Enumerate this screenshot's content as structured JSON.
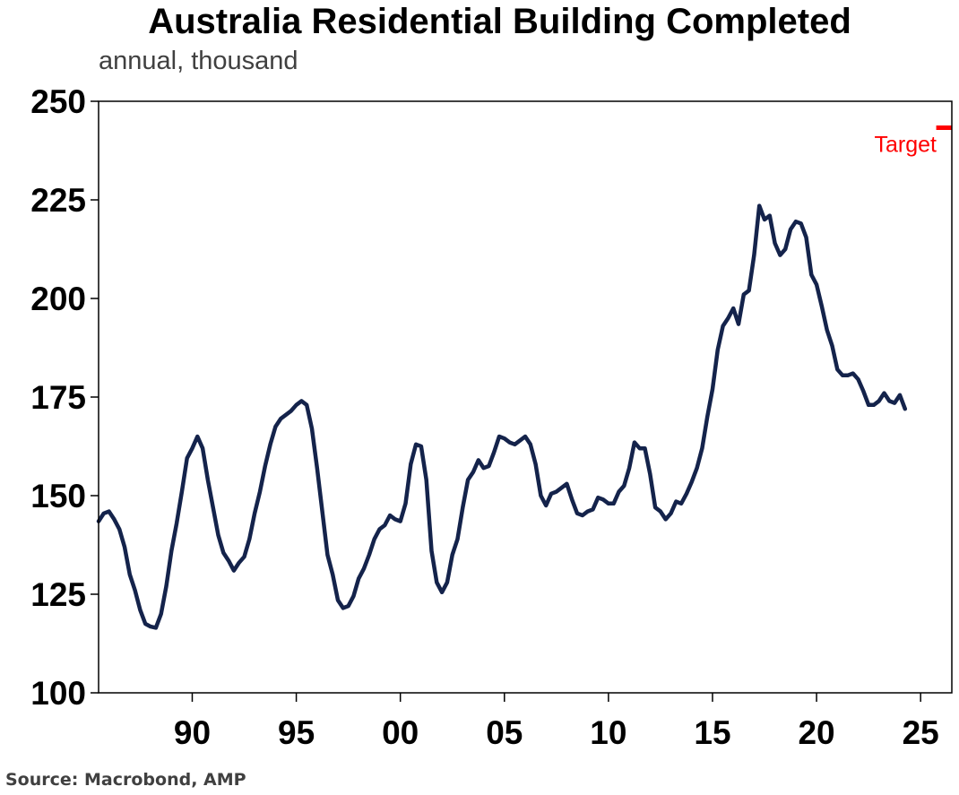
{
  "chart_data": {
    "type": "line",
    "title": "Australia Residential Building Completed",
    "subtitle": "annual, thousand",
    "source": "Source: Macrobond, AMP",
    "ylim": [
      100,
      250
    ],
    "yticks": [
      "250",
      "225",
      "200",
      "175",
      "150",
      "125",
      "100"
    ],
    "ytick_values": [
      250,
      225,
      200,
      175,
      150,
      125,
      100
    ],
    "xlim": [
      1985.5,
      2026.5
    ],
    "xticks": [
      "90",
      "95",
      "00",
      "05",
      "10",
      "15",
      "20",
      "25"
    ],
    "xtick_values": [
      1990,
      1995,
      2000,
      2005,
      2010,
      2015,
      2020,
      2025
    ],
    "grid": false,
    "colors": {
      "series": "#14234b",
      "target": "#ff0000"
    },
    "series": [
      {
        "values": [
          [
            1985.5,
            143.5
          ],
          [
            1985.75,
            145.5
          ],
          [
            1986.0,
            146.0
          ],
          [
            1986.25,
            144.0
          ],
          [
            1986.5,
            141.5
          ],
          [
            1986.75,
            137.0
          ],
          [
            1987.0,
            130.0
          ],
          [
            1987.25,
            126.0
          ],
          [
            1987.5,
            121.0
          ],
          [
            1987.75,
            117.5
          ],
          [
            1988.0,
            116.8
          ],
          [
            1988.25,
            116.5
          ],
          [
            1988.5,
            120.0
          ],
          [
            1988.75,
            127.0
          ],
          [
            1989.0,
            136.0
          ],
          [
            1989.25,
            143.0
          ],
          [
            1989.5,
            151.0
          ],
          [
            1989.75,
            159.5
          ],
          [
            1990.0,
            162.0
          ],
          [
            1990.25,
            165.0
          ],
          [
            1990.5,
            162.0
          ],
          [
            1990.75,
            154.0
          ],
          [
            1991.0,
            147.0
          ],
          [
            1991.25,
            140.0
          ],
          [
            1991.5,
            135.5
          ],
          [
            1991.75,
            133.5
          ],
          [
            1992.0,
            131.0
          ],
          [
            1992.25,
            133.0
          ],
          [
            1992.5,
            134.5
          ],
          [
            1992.75,
            139.0
          ],
          [
            1993.0,
            145.5
          ],
          [
            1993.25,
            151.0
          ],
          [
            1993.5,
            157.5
          ],
          [
            1993.75,
            163.0
          ],
          [
            1994.0,
            167.5
          ],
          [
            1994.25,
            169.5
          ],
          [
            1994.5,
            170.5
          ],
          [
            1994.75,
            171.5
          ],
          [
            1995.0,
            173.0
          ],
          [
            1995.25,
            174.0
          ],
          [
            1995.5,
            173.0
          ],
          [
            1995.75,
            167.0
          ],
          [
            1996.0,
            157.0
          ],
          [
            1996.25,
            146.0
          ],
          [
            1996.5,
            135.0
          ],
          [
            1996.75,
            130.0
          ],
          [
            1997.0,
            123.5
          ],
          [
            1997.25,
            121.5
          ],
          [
            1997.5,
            122.0
          ],
          [
            1997.75,
            124.5
          ],
          [
            1998.0,
            129.0
          ],
          [
            1998.25,
            131.5
          ],
          [
            1998.5,
            135.0
          ],
          [
            1998.75,
            139.0
          ],
          [
            1999.0,
            141.5
          ],
          [
            1999.25,
            142.5
          ],
          [
            1999.5,
            145.0
          ],
          [
            1999.75,
            144.0
          ],
          [
            2000.0,
            143.5
          ],
          [
            2000.25,
            148.0
          ],
          [
            2000.5,
            158.0
          ],
          [
            2000.75,
            163.0
          ],
          [
            2001.0,
            162.5
          ],
          [
            2001.25,
            154.0
          ],
          [
            2001.5,
            136.0
          ],
          [
            2001.75,
            128.0
          ],
          [
            2002.0,
            125.5
          ],
          [
            2002.25,
            128.0
          ],
          [
            2002.5,
            135.0
          ],
          [
            2002.75,
            139.0
          ],
          [
            2003.0,
            147.0
          ],
          [
            2003.25,
            154.0
          ],
          [
            2003.5,
            156.0
          ],
          [
            2003.75,
            159.0
          ],
          [
            2004.0,
            157.0
          ],
          [
            2004.25,
            157.5
          ],
          [
            2004.5,
            161.0
          ],
          [
            2004.75,
            165.0
          ],
          [
            2005.0,
            164.5
          ],
          [
            2005.25,
            163.5
          ],
          [
            2005.5,
            163.0
          ],
          [
            2005.75,
            164.0
          ],
          [
            2006.0,
            165.0
          ],
          [
            2006.25,
            163.0
          ],
          [
            2006.5,
            158.0
          ],
          [
            2006.75,
            150.0
          ],
          [
            2007.0,
            147.5
          ],
          [
            2007.25,
            150.5
          ],
          [
            2007.5,
            151.0
          ],
          [
            2007.75,
            152.0
          ],
          [
            2008.0,
            153.0
          ],
          [
            2008.25,
            149.0
          ],
          [
            2008.5,
            145.5
          ],
          [
            2008.75,
            145.0
          ],
          [
            2009.0,
            146.0
          ],
          [
            2009.25,
            146.5
          ],
          [
            2009.5,
            149.5
          ],
          [
            2009.75,
            149.0
          ],
          [
            2010.0,
            148.0
          ],
          [
            2010.25,
            148.0
          ],
          [
            2010.5,
            151.0
          ],
          [
            2010.75,
            152.5
          ],
          [
            2011.0,
            157.0
          ],
          [
            2011.25,
            163.5
          ],
          [
            2011.5,
            162.0
          ],
          [
            2011.75,
            162.0
          ],
          [
            2012.0,
            155.5
          ],
          [
            2012.25,
            147.0
          ],
          [
            2012.5,
            146.0
          ],
          [
            2012.75,
            144.0
          ],
          [
            2013.0,
            145.5
          ],
          [
            2013.25,
            148.5
          ],
          [
            2013.5,
            148.0
          ],
          [
            2013.75,
            150.5
          ],
          [
            2014.0,
            153.5
          ],
          [
            2014.25,
            157.0
          ],
          [
            2014.5,
            162.0
          ],
          [
            2014.75,
            170.0
          ],
          [
            2015.0,
            177.0
          ],
          [
            2015.25,
            187.0
          ],
          [
            2015.5,
            193.0
          ],
          [
            2015.75,
            195.0
          ],
          [
            2016.0,
            197.5
          ],
          [
            2016.25,
            193.5
          ],
          [
            2016.5,
            201.0
          ],
          [
            2016.75,
            202.0
          ],
          [
            2017.0,
            211.0
          ],
          [
            2017.25,
            223.5
          ],
          [
            2017.5,
            220.0
          ],
          [
            2017.75,
            221.0
          ],
          [
            2018.0,
            214.0
          ],
          [
            2018.25,
            211.0
          ],
          [
            2018.5,
            212.5
          ],
          [
            2018.75,
            217.5
          ],
          [
            2019.0,
            219.5
          ],
          [
            2019.25,
            219.0
          ],
          [
            2019.5,
            215.5
          ],
          [
            2019.75,
            206.0
          ],
          [
            2020.0,
            203.5
          ],
          [
            2020.25,
            198.0
          ],
          [
            2020.5,
            192.0
          ],
          [
            2020.75,
            188.0
          ],
          [
            2021.0,
            182.0
          ],
          [
            2021.25,
            180.5
          ],
          [
            2021.5,
            180.5
          ],
          [
            2021.75,
            181.0
          ],
          [
            2022.0,
            179.5
          ],
          [
            2022.25,
            176.5
          ],
          [
            2022.5,
            173.0
          ],
          [
            2022.75,
            173.0
          ],
          [
            2023.0,
            174.0
          ],
          [
            2023.25,
            176.0
          ],
          [
            2023.5,
            174.0
          ],
          [
            2023.75,
            173.5
          ],
          [
            2024.0,
            175.5
          ],
          [
            2024.25,
            172.0
          ]
        ]
      }
    ],
    "target": {
      "label": "Target",
      "value": 243.3,
      "x_start": 2025.75,
      "x_end": 2026.5
    }
  }
}
